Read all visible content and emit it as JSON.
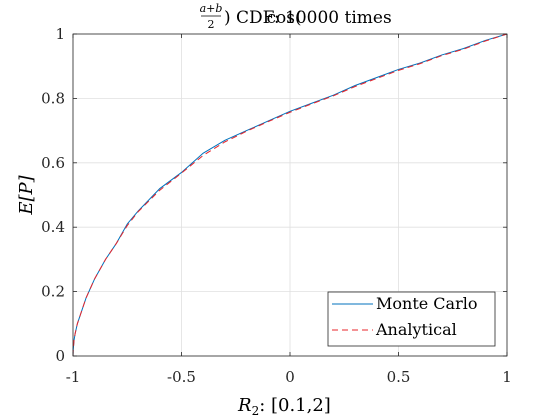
{
  "chart_data": {
    "type": "line",
    "title": "cos((a+b)/2) CDF: 10000 times",
    "title_parts": {
      "func": "cos",
      "num": "a+b",
      "den": "2",
      "rest": "CDF: 10000 times"
    },
    "xlabel": "R_2: [0.1,2]",
    "xlabel_parts": {
      "var": "R",
      "sub": "2",
      "rest": ":  [0.1,2]"
    },
    "ylabel": "E[P]",
    "xlim": [
      -1,
      1
    ],
    "ylim": [
      0,
      1
    ],
    "xticks": [
      -1,
      -0.5,
      0,
      0.5,
      1
    ],
    "xtick_labels": [
      "-1",
      "-0.5",
      "0",
      "0.5",
      "1"
    ],
    "yticks": [
      0,
      0.2,
      0.4,
      0.6,
      0.8,
      1
    ],
    "ytick_labels": [
      "0",
      "0.2",
      "0.4",
      "0.6",
      "0.8",
      "1"
    ],
    "grid": true,
    "legend_position": "bottom-right",
    "series": [
      {
        "name": "Monte Carlo",
        "color": "#0072BD",
        "style": "solid",
        "x": [
          -1.0,
          -0.999,
          -0.995,
          -0.99,
          -0.98,
          -0.96,
          -0.94,
          -0.92,
          -0.9,
          -0.85,
          -0.8,
          -0.75,
          -0.7,
          -0.6,
          -0.5,
          -0.4,
          -0.3,
          -0.2,
          -0.1,
          0.0,
          0.1,
          0.2,
          0.3,
          0.4,
          0.5,
          0.6,
          0.7,
          0.8,
          0.9,
          1.0
        ],
        "y": [
          0.0,
          0.02,
          0.05,
          0.07,
          0.1,
          0.14,
          0.18,
          0.21,
          0.24,
          0.3,
          0.35,
          0.41,
          0.45,
          0.52,
          0.57,
          0.63,
          0.67,
          0.7,
          0.73,
          0.76,
          0.785,
          0.81,
          0.84,
          0.865,
          0.89,
          0.91,
          0.935,
          0.955,
          0.98,
          1.0
        ]
      },
      {
        "name": "Analytical",
        "color": "#E8252B",
        "style": "dashed",
        "x": [
          -1.0,
          -0.999,
          -0.995,
          -0.99,
          -0.98,
          -0.96,
          -0.94,
          -0.92,
          -0.9,
          -0.85,
          -0.8,
          -0.75,
          -0.7,
          -0.6,
          -0.5,
          -0.4,
          -0.3,
          -0.2,
          -0.1,
          0.0,
          0.1,
          0.2,
          0.3,
          0.4,
          0.5,
          0.6,
          0.7,
          0.8,
          0.9,
          1.0
        ],
        "y": [
          0.0,
          0.02,
          0.05,
          0.07,
          0.1,
          0.14,
          0.18,
          0.21,
          0.24,
          0.3,
          0.35,
          0.405,
          0.448,
          0.515,
          0.568,
          0.623,
          0.665,
          0.698,
          0.728,
          0.757,
          0.783,
          0.808,
          0.837,
          0.862,
          0.887,
          0.908,
          0.933,
          0.953,
          0.978,
          1.0
        ]
      }
    ]
  }
}
